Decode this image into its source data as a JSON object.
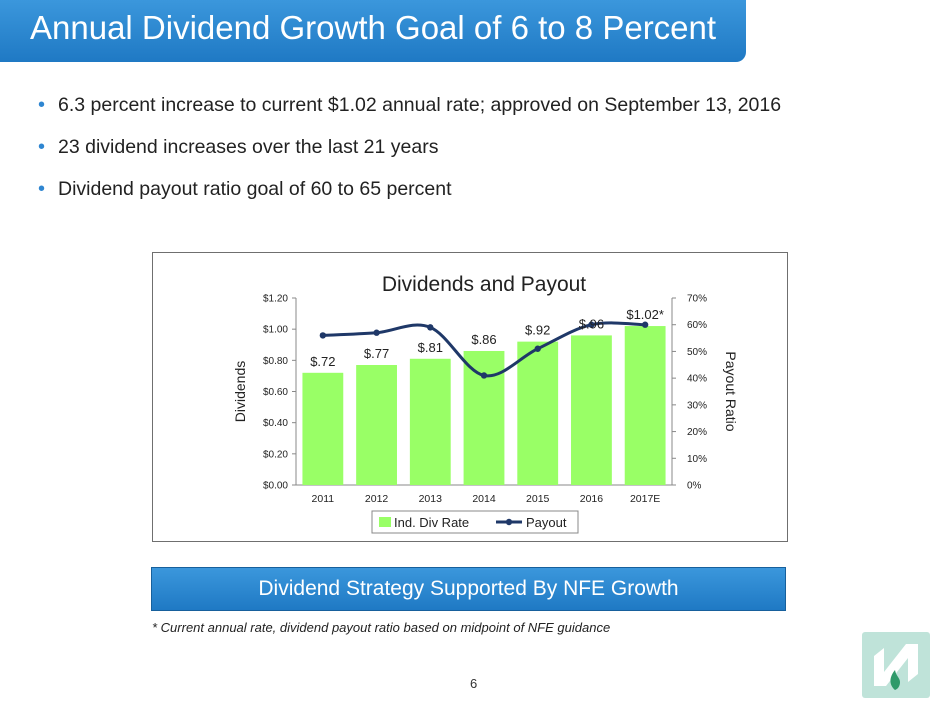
{
  "header": {
    "title": "Annual Dividend Growth Goal of 6 to 8 Percent"
  },
  "bullets": [
    {
      "text": "6.3 percent increase to current $1.02 annual rate; approved on September 13, 2016"
    },
    {
      "text": "23 dividend increases over the last 21 years"
    },
    {
      "text": "Dividend payout ratio goal of 60 to 65 percent"
    }
  ],
  "bullet_glyph": "•",
  "chart_data": {
    "type": "bar",
    "title": "Dividends and Payout",
    "categories": [
      "2011",
      "2012",
      "2013",
      "2014",
      "2015",
      "2016",
      "2017E"
    ],
    "series": [
      {
        "name": "Ind. Div Rate",
        "type": "bar",
        "axis": "left",
        "values": [
          0.72,
          0.77,
          0.81,
          0.86,
          0.92,
          0.96,
          1.02
        ],
        "labels": [
          "$.72",
          "$.77",
          "$.81",
          "$.86",
          "$.92",
          "$.96",
          "$1.02*"
        ],
        "color": "#99ff66"
      },
      {
        "name": "Payout",
        "type": "line",
        "axis": "right",
        "values": [
          0.56,
          0.57,
          0.59,
          0.41,
          0.51,
          0.6,
          0.6
        ],
        "color": "#1f3868"
      }
    ],
    "ylabel": "Dividends",
    "y2label": "Payout Ratio",
    "ylim": [
      0,
      1.2
    ],
    "y2lim": [
      0,
      0.7
    ],
    "yticks": [
      "$0.00",
      "$0.20",
      "$0.40",
      "$0.60",
      "$0.80",
      "$1.00",
      "$1.20"
    ],
    "y2ticks": [
      "0%",
      "10%",
      "20%",
      "30%",
      "40%",
      "50%",
      "60%",
      "70%"
    ],
    "grid": false,
    "legend": "bottom"
  },
  "strategy": {
    "text": "Dividend Strategy Supported By NFE Growth"
  },
  "footnote": {
    "text": "* Current annual rate, dividend payout ratio based on midpoint of NFE guidance"
  },
  "page_number": "6",
  "colors": {
    "accent": "#2a88d4",
    "bar": "#99ff66",
    "line": "#1f3868",
    "logo_bg": "#bfe3d9"
  }
}
